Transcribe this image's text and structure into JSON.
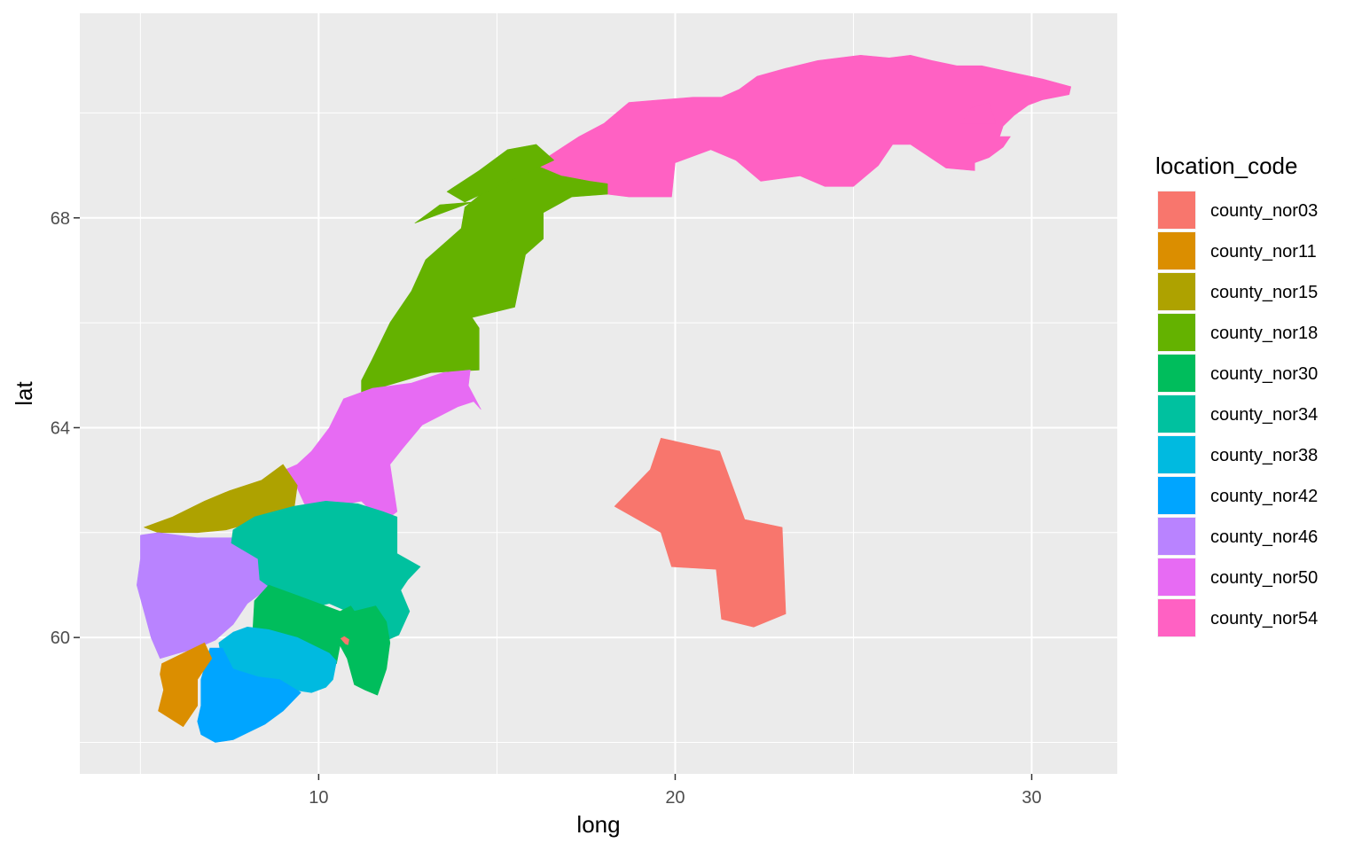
{
  "chart_data": {
    "type": "map",
    "xlabel": "long",
    "ylabel": "lat",
    "xlim": [
      3.3,
      32.4
    ],
    "ylim": [
      57.4,
      71.9
    ],
    "x_ticks": [
      {
        "value": 10,
        "label": "10"
      },
      {
        "value": 20,
        "label": "20"
      },
      {
        "value": 30,
        "label": "30"
      }
    ],
    "y_ticks": [
      {
        "value": 60,
        "label": "60"
      },
      {
        "value": 64,
        "label": "64"
      },
      {
        "value": 68,
        "label": "68"
      }
    ],
    "x_minor": [
      5,
      15,
      25
    ],
    "y_minor": [
      58,
      62,
      66,
      70
    ],
    "grid": true,
    "legend": {
      "title": "location_code",
      "position": "right"
    },
    "regions": [
      {
        "code": "county_nor03",
        "color": "#F8766D",
        "polys": [
          [
            [
              10.62,
              59.98
            ],
            [
              10.75,
              59.88
            ],
            [
              10.82,
              59.86
            ],
            [
              10.85,
              59.96
            ],
            [
              10.72,
              60.02
            ]
          ],
          [
            [
              18.3,
              62.5
            ],
            [
              19.3,
              63.2
            ],
            [
              19.6,
              63.8
            ],
            [
              21.25,
              63.55
            ],
            [
              21.95,
              62.25
            ],
            [
              23.0,
              62.1
            ],
            [
              23.1,
              60.45
            ],
            [
              22.2,
              60.2
            ],
            [
              21.3,
              60.35
            ],
            [
              21.15,
              61.3
            ],
            [
              19.9,
              61.35
            ],
            [
              19.6,
              62.0
            ]
          ]
        ]
      },
      {
        "code": "county_nor11",
        "color": "#DB8E00",
        "polys": [
          [
            [
              5.6,
              59.5
            ],
            [
              6.8,
              59.9
            ],
            [
              7.0,
              59.6
            ],
            [
              6.6,
              59.2
            ],
            [
              6.6,
              58.7
            ],
            [
              6.2,
              58.3
            ],
            [
              5.5,
              58.6
            ],
            [
              5.65,
              59.0
            ],
            [
              5.55,
              59.3
            ]
          ]
        ]
      },
      {
        "code": "county_nor15",
        "color": "#AEA200",
        "polys": [
          [
            [
              5.1,
              62.1
            ],
            [
              5.9,
              62.3
            ],
            [
              6.8,
              62.6
            ],
            [
              7.5,
              62.8
            ],
            [
              8.4,
              63.0
            ],
            [
              9.0,
              63.3
            ],
            [
              9.4,
              62.9
            ],
            [
              9.3,
              62.4
            ],
            [
              7.4,
              62.05
            ],
            [
              6.6,
              62.0
            ],
            [
              5.5,
              62.0
            ]
          ]
        ]
      },
      {
        "code": "county_nor18",
        "color": "#64B200",
        "polys": [
          [
            [
              11.2,
              64.6
            ],
            [
              11.9,
              64.8
            ],
            [
              13.15,
              65.05
            ],
            [
              14.5,
              65.1
            ],
            [
              14.5,
              65.9
            ],
            [
              14.3,
              66.1
            ],
            [
              15.5,
              66.3
            ],
            [
              15.8,
              67.3
            ],
            [
              16.3,
              67.6
            ],
            [
              16.3,
              68.1
            ],
            [
              17.1,
              68.4
            ],
            [
              18.1,
              68.45
            ],
            [
              18.1,
              68.65
            ],
            [
              17.6,
              68.7
            ],
            [
              16.8,
              68.8
            ],
            [
              16.1,
              69.0
            ],
            [
              15.0,
              68.7
            ],
            [
              14.1,
              68.2
            ],
            [
              14.0,
              67.8
            ],
            [
              13.0,
              67.2
            ],
            [
              12.6,
              66.6
            ],
            [
              12.0,
              66.0
            ],
            [
              11.5,
              65.3
            ],
            [
              11.2,
              64.9
            ]
          ],
          [
            [
              14.1,
              68.3
            ],
            [
              16.6,
              69.1
            ],
            [
              16.1,
              69.4
            ],
            [
              15.3,
              69.3
            ],
            [
              14.5,
              68.9
            ],
            [
              13.6,
              68.5
            ]
          ],
          [
            [
              12.7,
              67.9
            ],
            [
              14.3,
              68.3
            ],
            [
              13.4,
              68.25
            ]
          ]
        ]
      },
      {
        "code": "county_nor30",
        "color": "#00BD5C",
        "polys": [
          [
            [
              8.2,
              60.7
            ],
            [
              8.6,
              61.0
            ],
            [
              9.4,
              60.8
            ],
            [
              10.6,
              60.5
            ],
            [
              10.9,
              60.6
            ],
            [
              11.0,
              60.5
            ],
            [
              11.6,
              60.6
            ],
            [
              11.9,
              60.3
            ],
            [
              12.0,
              59.9
            ],
            [
              11.9,
              59.4
            ],
            [
              11.65,
              58.9
            ],
            [
              11.3,
              59.0
            ],
            [
              11.0,
              59.1
            ],
            [
              10.8,
              59.6
            ],
            [
              10.6,
              59.85
            ],
            [
              10.5,
              59.5
            ],
            [
              10.3,
              59.5
            ],
            [
              9.9,
              59.75
            ],
            [
              9.5,
              59.9
            ],
            [
              8.9,
              60.0
            ],
            [
              8.6,
              59.85
            ],
            [
              8.15,
              60.1
            ]
          ]
        ]
      },
      {
        "code": "county_nor34",
        "color": "#00C19F",
        "polys": [
          [
            [
              7.6,
              62.05
            ],
            [
              8.2,
              62.3
            ],
            [
              9.3,
              62.5
            ],
            [
              10.2,
              62.6
            ],
            [
              11.1,
              62.55
            ],
            [
              11.8,
              62.4
            ],
            [
              12.2,
              62.3
            ],
            [
              12.2,
              61.6
            ],
            [
              12.85,
              61.35
            ],
            [
              12.5,
              61.1
            ],
            [
              12.3,
              60.9
            ],
            [
              12.55,
              60.5
            ],
            [
              12.25,
              60.05
            ],
            [
              11.75,
              59.9
            ],
            [
              11.55,
              60.3
            ],
            [
              10.8,
              60.5
            ],
            [
              10.3,
              60.65
            ],
            [
              9.7,
              60.55
            ],
            [
              8.65,
              60.95
            ],
            [
              8.35,
              61.1
            ],
            [
              8.3,
              61.5
            ],
            [
              7.55,
              61.8
            ]
          ]
        ]
      },
      {
        "code": "county_nor38",
        "color": "#00BAE0",
        "polys": [
          [
            [
              7.2,
              59.9
            ],
            [
              7.6,
              60.1
            ],
            [
              8.0,
              60.2
            ],
            [
              8.6,
              60.15
            ],
            [
              9.4,
              60.0
            ],
            [
              10.0,
              59.8
            ],
            [
              10.3,
              59.7
            ],
            [
              10.5,
              59.55
            ],
            [
              10.4,
              59.2
            ],
            [
              10.2,
              59.05
            ],
            [
              9.8,
              58.95
            ],
            [
              9.3,
              59.0
            ],
            [
              8.8,
              59.1
            ],
            [
              8.3,
              59.2
            ],
            [
              7.7,
              59.3
            ],
            [
              7.3,
              59.5
            ]
          ]
        ]
      },
      {
        "code": "county_nor42",
        "color": "#00A5FF",
        "polys": [
          [
            [
              6.95,
              59.8
            ],
            [
              7.3,
              59.8
            ],
            [
              7.6,
              59.4
            ],
            [
              8.3,
              59.25
            ],
            [
              8.9,
              59.2
            ],
            [
              9.5,
              58.95
            ],
            [
              9.0,
              58.6
            ],
            [
              8.5,
              58.35
            ],
            [
              7.6,
              58.05
            ],
            [
              7.1,
              58.0
            ],
            [
              6.7,
              58.15
            ],
            [
              6.6,
              58.4
            ],
            [
              6.7,
              58.7
            ],
            [
              6.7,
              59.2
            ]
          ]
        ]
      },
      {
        "code": "county_nor46",
        "color": "#B983FF",
        "polys": [
          [
            [
              5.0,
              61.95
            ],
            [
              5.5,
              62.0
            ],
            [
              6.6,
              61.9
            ],
            [
              7.7,
              61.9
            ],
            [
              8.6,
              61.6
            ],
            [
              8.45,
              61.15
            ],
            [
              8.6,
              60.95
            ],
            [
              8.0,
              60.65
            ],
            [
              7.6,
              60.25
            ],
            [
              7.1,
              59.95
            ],
            [
              6.6,
              59.8
            ],
            [
              6.05,
              59.7
            ],
            [
              5.55,
              59.6
            ],
            [
              5.3,
              60.0
            ],
            [
              5.1,
              60.5
            ],
            [
              4.9,
              61.0
            ],
            [
              5.0,
              61.5
            ]
          ]
        ]
      },
      {
        "code": "county_nor50",
        "color": "#E76BF3",
        "polys": [
          [
            [
              8.9,
              63.15
            ],
            [
              9.3,
              63.0
            ],
            [
              9.6,
              62.55
            ],
            [
              10.0,
              62.45
            ],
            [
              11.2,
              62.6
            ],
            [
              11.8,
              62.2
            ],
            [
              12.2,
              62.4
            ],
            [
              12.0,
              63.3
            ],
            [
              12.35,
              63.6
            ],
            [
              12.9,
              64.05
            ],
            [
              13.9,
              64.4
            ],
            [
              14.35,
              64.5
            ],
            [
              14.55,
              64.35
            ],
            [
              14.2,
              64.8
            ],
            [
              14.25,
              65.1
            ],
            [
              13.5,
              65.05
            ],
            [
              12.6,
              64.85
            ],
            [
              11.5,
              64.75
            ],
            [
              10.7,
              64.55
            ],
            [
              10.3,
              64.0
            ],
            [
              9.8,
              63.55
            ],
            [
              9.4,
              63.3
            ]
          ]
        ]
      },
      {
        "code": "county_nor54",
        "color": "#FF61C3",
        "polys": [
          [
            [
              15.8,
              68.8
            ],
            [
              16.4,
              69.15
            ],
            [
              17.3,
              69.55
            ],
            [
              18.0,
              69.8
            ],
            [
              18.7,
              70.2
            ],
            [
              19.6,
              70.25
            ],
            [
              20.5,
              70.3
            ],
            [
              21.3,
              70.3
            ],
            [
              21.8,
              70.45
            ],
            [
              22.3,
              70.7
            ],
            [
              23.1,
              70.85
            ],
            [
              24.0,
              71.0
            ],
            [
              25.2,
              71.1
            ],
            [
              26.0,
              71.05
            ],
            [
              26.6,
              71.1
            ],
            [
              27.2,
              71.0
            ],
            [
              27.9,
              70.9
            ],
            [
              28.6,
              70.9
            ],
            [
              29.6,
              70.75
            ],
            [
              30.3,
              70.65
            ],
            [
              31.1,
              70.5
            ],
            [
              31.05,
              70.35
            ],
            [
              30.3,
              70.25
            ],
            [
              29.9,
              70.15
            ],
            [
              29.5,
              69.95
            ],
            [
              29.2,
              69.75
            ],
            [
              29.1,
              69.55
            ],
            [
              29.4,
              69.55
            ],
            [
              29.2,
              69.35
            ],
            [
              28.8,
              69.15
            ],
            [
              28.4,
              69.05
            ],
            [
              28.4,
              68.9
            ],
            [
              27.6,
              68.95
            ],
            [
              26.6,
              69.4
            ],
            [
              26.1,
              69.4
            ],
            [
              25.7,
              69.0
            ],
            [
              25.0,
              68.6
            ],
            [
              24.2,
              68.6
            ],
            [
              23.5,
              68.8
            ],
            [
              22.4,
              68.7
            ],
            [
              21.7,
              69.1
            ],
            [
              21.0,
              69.3
            ],
            [
              20.0,
              69.05
            ],
            [
              19.9,
              68.4
            ],
            [
              18.7,
              68.4
            ],
            [
              18.1,
              68.45
            ],
            [
              17.3,
              68.5
            ],
            [
              16.5,
              68.65
            ]
          ],
          [
            [
              28.0,
              69.8
            ],
            [
              29.0,
              69.8
            ],
            [
              28.8,
              70.2
            ],
            [
              28.3,
              70.1
            ]
          ]
        ]
      }
    ]
  }
}
